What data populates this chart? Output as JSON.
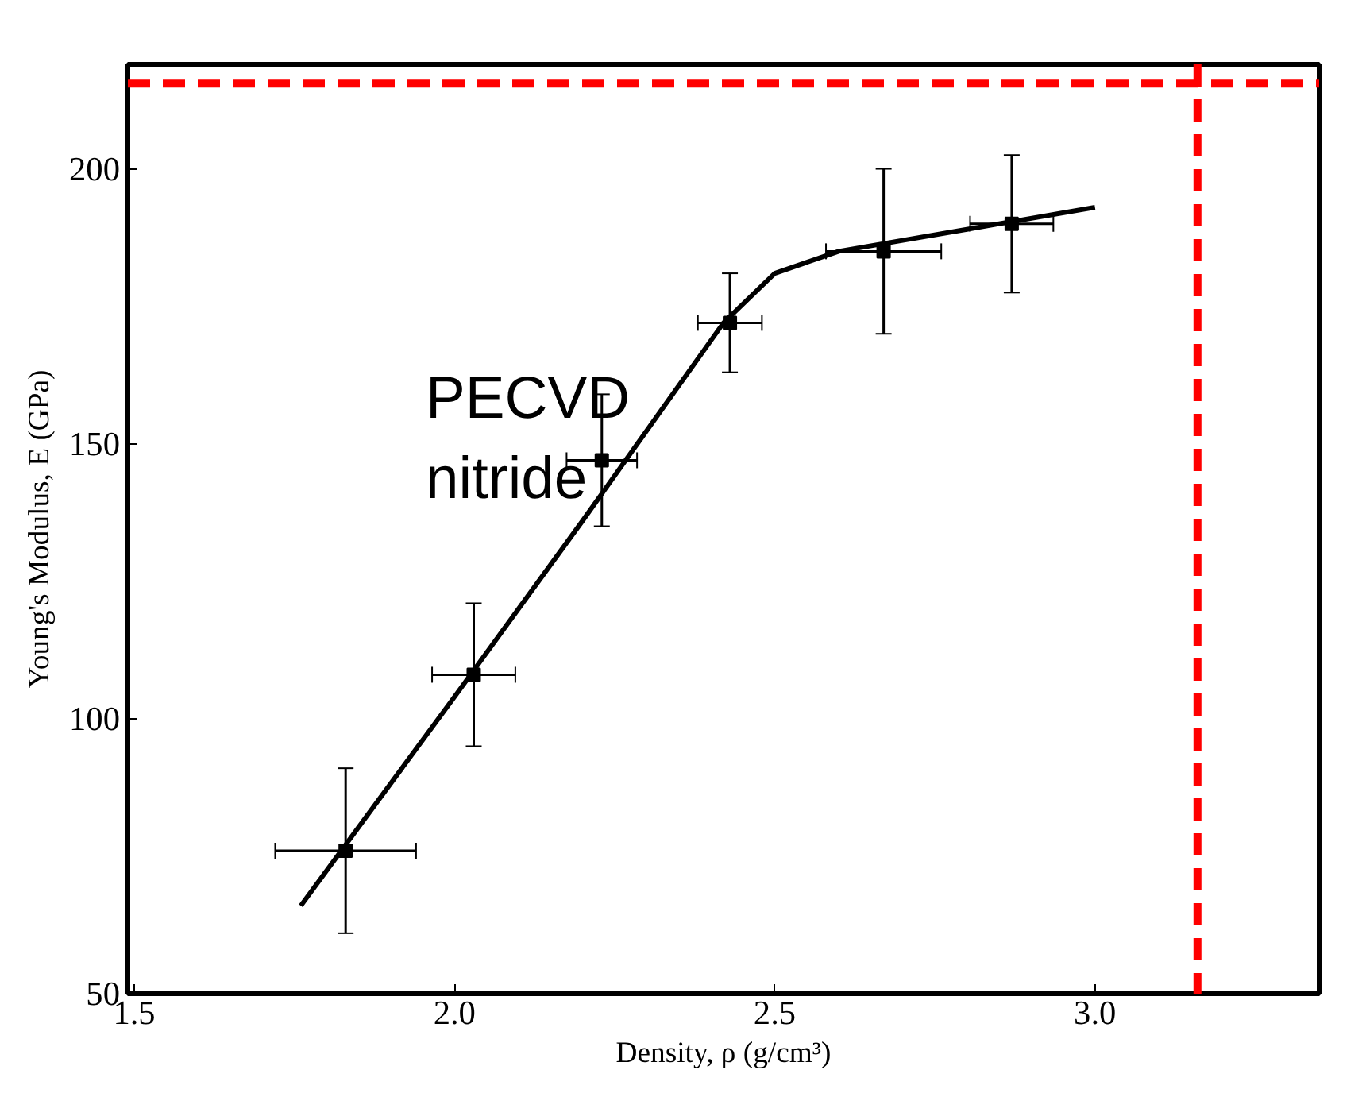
{
  "chart_data": {
    "type": "scatter",
    "xlabel": "Density, ρ (g/cm³)",
    "ylabel": "Young's Modulus, E (GPa)",
    "annotations": [
      "PECVD\nnitride"
    ],
    "series": [
      {
        "color": "#000000",
        "marker": "square",
        "x": [
          1.83,
          2.03,
          2.23,
          2.43,
          2.67,
          2.87
        ],
        "values": [
          76,
          108,
          147,
          172,
          185,
          190
        ],
        "errors": [
          15,
          13,
          12,
          9,
          15,
          12.5
        ],
        "xerrors": [
          0.11,
          0.065,
          0.055,
          0.05,
          0.09,
          0.065
        ]
      },
      {
        "type": "line",
        "color": "#000000",
        "line_style": "solid",
        "x": [
          1.76,
          2.0,
          2.2,
          2.42,
          2.5,
          2.6,
          2.8,
          3.0
        ],
        "values": [
          66,
          104,
          136,
          172,
          181,
          185,
          189,
          193
        ]
      }
    ],
    "ref_lines": [
      {
        "axis": "x",
        "value": 3.16,
        "color": "#ff0000",
        "line_style": "dashed"
      },
      {
        "axis": "y",
        "value": 215.5,
        "color": "#ff0000",
        "line_style": "dashed"
      }
    ],
    "xlim": [
      1.49,
      3.35
    ],
    "ylim": [
      50,
      219
    ],
    "xticks": [
      1.5,
      {
        "value": 2,
        "label": "2.0"
      },
      2.5,
      {
        "value": 3,
        "label": "3.0"
      }
    ],
    "yticks": [
      50,
      100,
      150,
      200
    ],
    "grid": false
  }
}
